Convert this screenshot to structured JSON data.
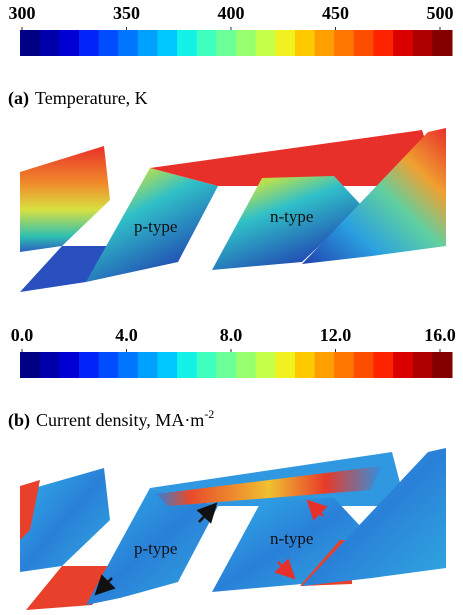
{
  "chart_data": [
    {
      "type": "colorbar",
      "label": "(a)",
      "title": "Temperature, K",
      "xlim": [
        300,
        500
      ],
      "xticks": [
        300,
        350,
        400,
        450,
        500
      ],
      "annotations": [
        "p-type",
        "n-type"
      ]
    },
    {
      "type": "colorbar",
      "label": "(b)",
      "title": "Current density, MA·m",
      "title_superscript": "-2",
      "xlim": [
        0,
        16
      ],
      "xticks": [
        {
          "value": 0,
          "label": "0.0"
        },
        {
          "value": 4,
          "label": "4.0"
        },
        {
          "value": 8,
          "label": "8.0"
        },
        {
          "value": 12,
          "label": "12.0"
        },
        {
          "value": 16,
          "label": "16.0"
        }
      ],
      "annotations": [
        "p-type",
        "n-type"
      ]
    }
  ]
}
